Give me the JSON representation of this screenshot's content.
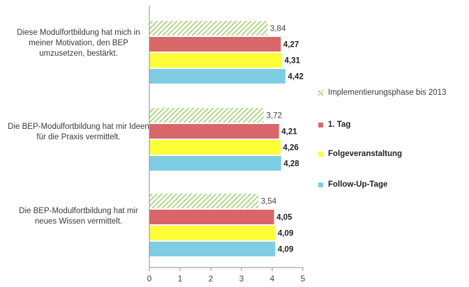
{
  "chart_data": {
    "type": "bar",
    "orientation": "horizontal",
    "categories": [
      "Diese Modulfortbildung hat mich in meiner Motivation, den BEP umzusetzen, bestärkt.",
      "Die BEP-Modulfortbildung hat mir Ideen für die Praxis vermittelt.",
      "Die BEP-Modulfortbildung hat mir neues Wissen vermittelt."
    ],
    "series": [
      {
        "name": "Implementierungsphase bis 2013",
        "values": [
          3.84,
          3.72,
          3.54
        ],
        "labels": [
          "3,84",
          "3,72",
          "3,54"
        ],
        "color": "#9ccf6a",
        "pattern": "hatch",
        "bold": false
      },
      {
        "name": "1. Tag",
        "values": [
          4.27,
          4.21,
          4.05
        ],
        "labels": [
          "4,27",
          "4,21",
          "4,05"
        ],
        "color": "#d9676a",
        "bold": true
      },
      {
        "name": "Folgeveranstaltung",
        "values": [
          4.31,
          4.26,
          4.09
        ],
        "labels": [
          "4,31",
          "4,26",
          "4,09"
        ],
        "color": "#fdfd38",
        "bold": true
      },
      {
        "name": "Follow-Up-Tage",
        "values": [
          4.42,
          4.28,
          4.09
        ],
        "labels": [
          "4,42",
          "4,28",
          "4,09"
        ],
        "color": "#7ecde3",
        "bold": true
      }
    ],
    "xlim": [
      0,
      5
    ],
    "xticks": [
      "0",
      "1",
      "2",
      "3",
      "4",
      "5"
    ],
    "grid": false,
    "legend_position": "right"
  }
}
